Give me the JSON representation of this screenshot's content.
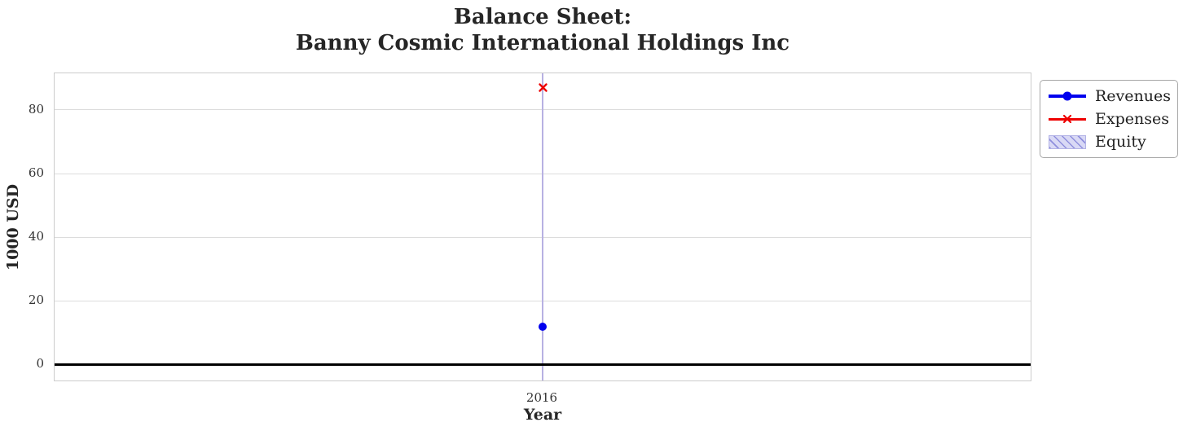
{
  "chart_data": {
    "type": "line",
    "title": "Balance Sheet:\nBanny Cosmic International Holdings Inc",
    "xlabel": "Year",
    "ylabel": "1000 USD",
    "x": [
      2016
    ],
    "series": [
      {
        "name": "Revenues",
        "style": "line-marker",
        "marker": "circle",
        "color": "#0000ee",
        "values": [
          12
        ]
      },
      {
        "name": "Expenses",
        "style": "line-marker",
        "marker": "x",
        "color": "#ee0000",
        "values": [
          87
        ]
      },
      {
        "name": "Equity",
        "style": "hatched-bar",
        "color": "#d9d9f5",
        "hatch_color": "#8f8fdd",
        "border_color": "#b3b3e6",
        "values": [
          null
        ]
      }
    ],
    "xlim": [
      2015.5,
      2016.5
    ],
    "ylim": [
      -5,
      91.5
    ],
    "yticks": [
      0,
      20,
      40,
      60,
      80
    ],
    "xticks": [
      2016
    ],
    "xtick_labels": [
      "2016"
    ],
    "grid": true,
    "zero_line": true,
    "legend_position": "upper-right-outside",
    "colors": {
      "y_grid": "#dcdcdc",
      "x_grid": "#b7b1e2",
      "plot_border": "#cccccc",
      "zero_line": "#000000",
      "text": "#262626"
    }
  }
}
